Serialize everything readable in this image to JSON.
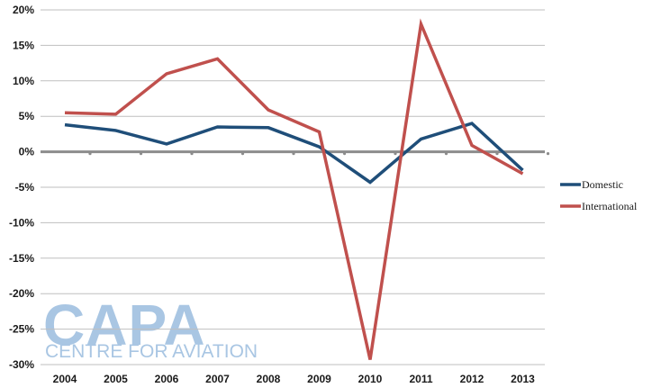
{
  "chart_data": {
    "type": "line",
    "title": "",
    "xlabel": "",
    "ylabel": "",
    "categories": [
      "2004",
      "2005",
      "2006",
      "2007",
      "2008",
      "2009",
      "2010",
      "2011",
      "2012",
      "2013"
    ],
    "ylim": [
      -30,
      20
    ],
    "yticks": [
      20,
      15,
      10,
      5,
      0,
      -5,
      -10,
      -15,
      -20,
      -25,
      -30
    ],
    "ytick_labels": [
      "20%",
      "15%",
      "10%",
      "5%",
      "0%",
      "-5%",
      "-10%",
      "-15%",
      "-20%",
      "-25%",
      "-30%"
    ],
    "grid": true,
    "legend": "right",
    "series": [
      {
        "name": "Domestic",
        "color": "#1f4e79",
        "values": [
          3.8,
          3.0,
          1.1,
          3.5,
          3.4,
          0.7,
          -4.3,
          1.8,
          4.0,
          -2.6
        ]
      },
      {
        "name": "International",
        "color": "#c0504d",
        "values": [
          5.5,
          5.3,
          11.0,
          13.1,
          5.9,
          2.8,
          -29.3,
          18.0,
          0.9,
          -3.1
        ]
      }
    ]
  },
  "watermark": {
    "logo_text": "CAPA",
    "tagline": "CENTRE FOR AVIATION"
  }
}
